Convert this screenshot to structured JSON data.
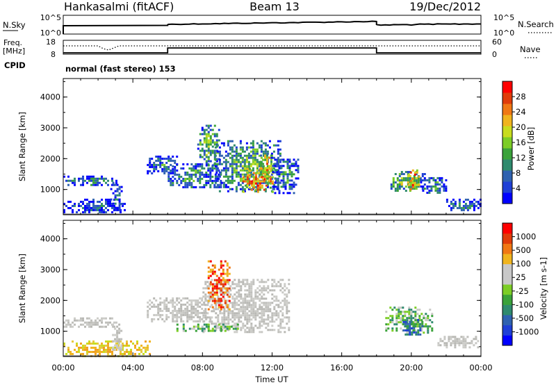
{
  "header": {
    "station": "Hankasalmi (fitACF)",
    "beam": "Beam 13",
    "date": "19/Dec/2012"
  },
  "status_panels": {
    "nsky_label": "N.Sky",
    "nsearch_label": "N.Search",
    "freq_label_line1": "Freq.",
    "freq_label_line2": "[MHz]",
    "nave_label": "Nave",
    "cpid_label": "CPID",
    "cpid_value": "normal (fast stereo) 153",
    "noise_left_ticks": [
      "10^5",
      "10^0"
    ],
    "noise_right_ticks": [
      "10^5",
      "10^0"
    ],
    "freq_left_ticks": [
      "18",
      "8"
    ],
    "freq_right_ticks": [
      "60",
      "0"
    ]
  },
  "chart_data": [
    {
      "type": "heatmap",
      "name": "power",
      "ylabel": "Slant Range [km]",
      "xlabel": "",
      "x_ticks": [
        "00:00",
        "04:00",
        "08:00",
        "12:00",
        "16:00",
        "20:00",
        "00:00"
      ],
      "x_range_hours": [
        0,
        24
      ],
      "y_ticks": [
        1000,
        2000,
        3000,
        4000
      ],
      "ylim": [
        180,
        4600
      ],
      "colorbar": {
        "label": "Power [dB]",
        "ticks": [
          4,
          8,
          12,
          16,
          20,
          24,
          28
        ],
        "range": [
          0,
          32
        ],
        "colors": [
          "#0000ff",
          "#1f3fd6",
          "#2f62b0",
          "#2f8a6e",
          "#3aa23a",
          "#7ccd26",
          "#c8dc1e",
          "#f0b41e",
          "#f07814",
          "#e03c0a",
          "#ff0000"
        ]
      },
      "regions": [
        {
          "t0": 0.0,
          "t1": 3.0,
          "r0": 1150,
          "r1": 1450,
          "level": 0.35
        },
        {
          "t0": 0.0,
          "t1": 3.5,
          "r0": 250,
          "r1": 700,
          "level": 0.25
        },
        {
          "t0": 2.7,
          "t1": 3.3,
          "r0": 350,
          "r1": 1250,
          "level": 0.3
        },
        {
          "t0": 4.8,
          "t1": 6.5,
          "r0": 1500,
          "r1": 2100,
          "level": 0.35
        },
        {
          "t0": 6.0,
          "t1": 9.0,
          "r0": 1050,
          "r1": 1850,
          "level": 0.4
        },
        {
          "t0": 7.7,
          "t1": 9.0,
          "r0": 1800,
          "r1": 3100,
          "level": 0.5
        },
        {
          "t0": 8.7,
          "t1": 12.5,
          "r0": 950,
          "r1": 2600,
          "level": 0.45
        },
        {
          "t0": 10.3,
          "t1": 12.0,
          "r0": 950,
          "r1": 1700,
          "level": 0.85
        },
        {
          "t0": 11.3,
          "t1": 12.0,
          "r0": 1300,
          "r1": 2200,
          "level": 0.75
        },
        {
          "t0": 12.0,
          "t1": 13.5,
          "r0": 900,
          "r1": 2000,
          "level": 0.35
        },
        {
          "t0": 18.8,
          "t1": 20.8,
          "r0": 950,
          "r1": 1600,
          "level": 0.55
        },
        {
          "t0": 19.8,
          "t1": 20.4,
          "r0": 1000,
          "r1": 1650,
          "level": 0.85
        },
        {
          "t0": 20.5,
          "t1": 22.0,
          "r0": 900,
          "r1": 1400,
          "level": 0.4
        },
        {
          "t0": 22.0,
          "t1": 24.0,
          "r0": 350,
          "r1": 700,
          "level": 0.3
        }
      ]
    },
    {
      "type": "heatmap",
      "name": "velocity",
      "ylabel": "Slant Range [km]",
      "xlabel": "Time UT",
      "x_ticks": [
        "00:00",
        "04:00",
        "08:00",
        "12:00",
        "16:00",
        "20:00",
        "00:00"
      ],
      "x_range_hours": [
        0,
        24
      ],
      "y_ticks": [
        1000,
        2000,
        3000,
        4000
      ],
      "ylim": [
        180,
        4600
      ],
      "colorbar": {
        "label": "Velocity [m s-1]",
        "ticks": [
          "1000",
          "500",
          "100",
          "25",
          "-25",
          "-100",
          "-500",
          "-1000"
        ],
        "colors": [
          "#0000ff",
          "#1f3fd6",
          "#2f62b0",
          "#2f8a6e",
          "#3aa23a",
          "#7ccd26",
          "#c8c8c8",
          "#c8c8c8",
          "#f0b41e",
          "#f07814",
          "#e03c0a",
          "#ff0000"
        ]
      },
      "regions": [
        {
          "t0": 0.0,
          "t1": 3.0,
          "r0": 1150,
          "r1": 1450,
          "kind": "grey"
        },
        {
          "t0": 0.0,
          "t1": 5.0,
          "r0": 200,
          "r1": 700,
          "kind": "yellow"
        },
        {
          "t0": 2.8,
          "t1": 3.3,
          "r0": 350,
          "r1": 1250,
          "kind": "grey"
        },
        {
          "t0": 4.8,
          "t1": 8.5,
          "r0": 1300,
          "r1": 2100,
          "kind": "grey"
        },
        {
          "t0": 8.0,
          "t1": 13.0,
          "r0": 1000,
          "r1": 2700,
          "kind": "grey"
        },
        {
          "t0": 8.3,
          "t1": 9.5,
          "r0": 1700,
          "r1": 3300,
          "kind": "red"
        },
        {
          "t0": 6.5,
          "t1": 10.0,
          "r0": 1000,
          "r1": 1250,
          "kind": "green"
        },
        {
          "t0": 18.5,
          "t1": 21.2,
          "r0": 950,
          "r1": 1800,
          "kind": "green"
        },
        {
          "t0": 19.5,
          "t1": 20.6,
          "r0": 900,
          "r1": 1400,
          "kind": "teal"
        },
        {
          "t0": 21.5,
          "t1": 24.0,
          "r0": 500,
          "r1": 850,
          "kind": "grey"
        }
      ]
    }
  ]
}
